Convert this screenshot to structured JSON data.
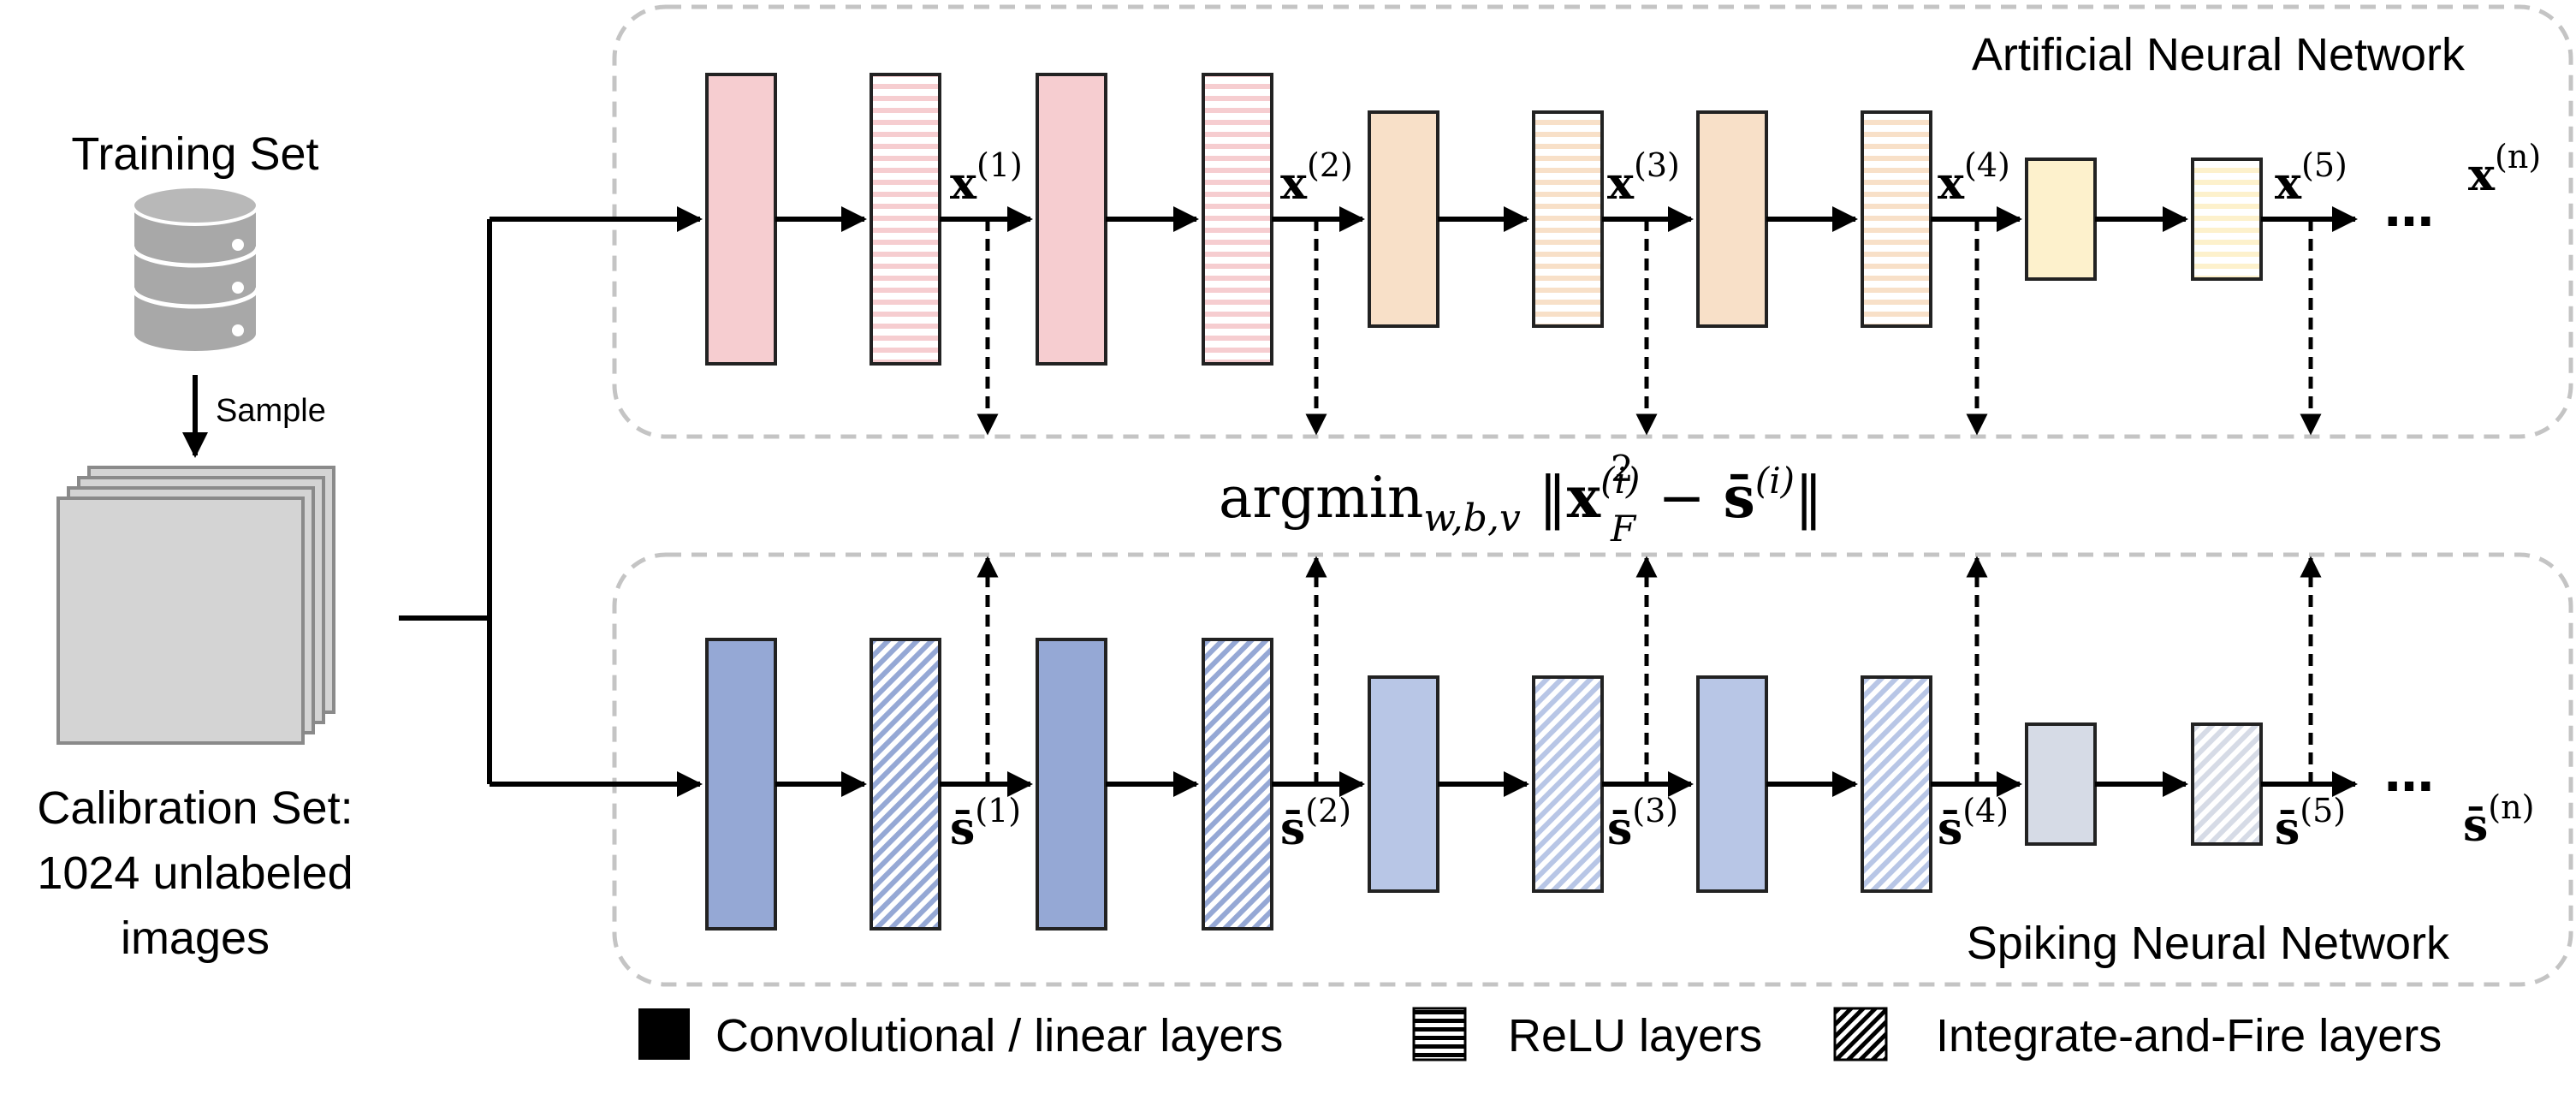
{
  "left": {
    "training_title": "Training Set",
    "sample_label": "Sample",
    "calibration_line1": "Calibration Set:",
    "calibration_line2": "1024 unlabeled",
    "calibration_line3": "images"
  },
  "ann": {
    "title": "Artificial Neural Network",
    "activations": [
      {
        "base": "x",
        "sup": "(1)"
      },
      {
        "base": "x",
        "sup": "(2)"
      },
      {
        "base": "x",
        "sup": "(3)"
      },
      {
        "base": "x",
        "sup": "(4)"
      },
      {
        "base": "x",
        "sup": "(5)"
      }
    ],
    "final": {
      "base": "x",
      "sup": "(n)"
    }
  },
  "snn": {
    "title": "Spiking Neural Network",
    "activations": [
      {
        "base": "s̄",
        "sup": "(1)"
      },
      {
        "base": "s̄",
        "sup": "(2)"
      },
      {
        "base": "s̄",
        "sup": "(3)"
      },
      {
        "base": "s̄",
        "sup": "(4)"
      },
      {
        "base": "s̄",
        "sup": "(5)"
      }
    ],
    "final": {
      "base": "s̄",
      "sup": "(n)"
    }
  },
  "ellipsis": "…",
  "objective": {
    "op": "argmin",
    "sub": "w,b,v",
    "x": "x",
    "x_sup": "(i)",
    "minus": "−",
    "s": "s̄",
    "s_sup": "(i)",
    "norm_sub": "F",
    "norm_sup": "2"
  },
  "legend": {
    "conv": "Convolutional / linear layers",
    "relu": "ReLU layers",
    "if": "Integrate-and-Fire layers"
  },
  "colors": {
    "ann_stage1": "#f6cdd0",
    "ann_stage2": "#f8e0c8",
    "ann_stage3": "#fdf1cc",
    "snn_stage1": "#95a8d5",
    "snn_stage2": "#b8c6e6",
    "snn_stage3": "#d6dbe6",
    "box_stroke": "#222222",
    "dashed_border": "#c4c4c4",
    "stack_fill": "#d4d4d4"
  }
}
